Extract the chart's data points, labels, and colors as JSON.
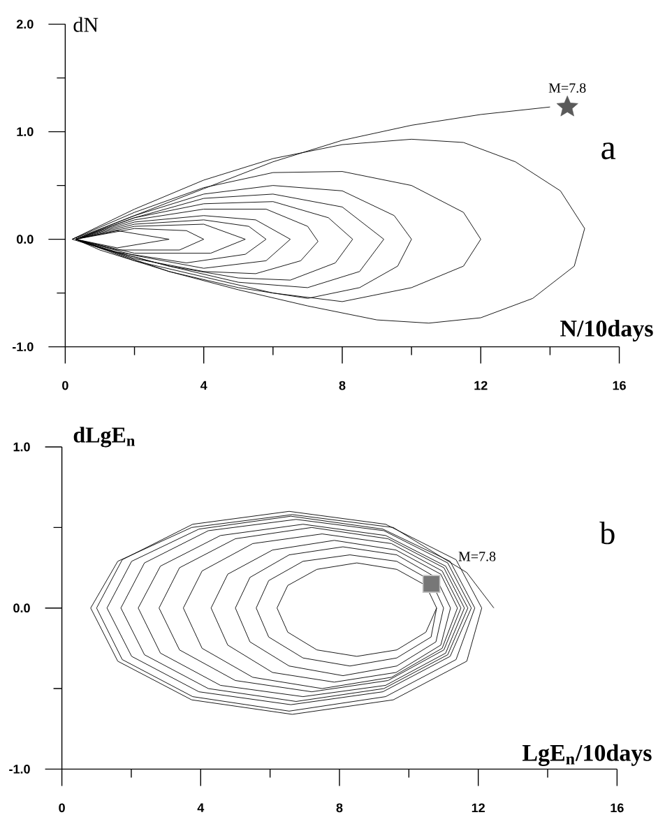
{
  "chart_data": [
    {
      "type": "line",
      "xlabel": "N/10days",
      "ylabel": "dN",
      "xlim": [
        0,
        16
      ],
      "ylim": [
        -1,
        2
      ],
      "xticks": [
        0,
        {
          "value": 2,
          "label": null
        },
        4,
        {
          "value": 6,
          "label": null
        },
        8,
        {
          "value": 10,
          "label": null
        },
        12,
        {
          "value": 14,
          "label": null
        },
        16
      ],
      "yticks": [
        {
          "value": -1,
          "label": "-1.0"
        },
        {
          "value": -0.5,
          "label": null
        },
        {
          "value": 0,
          "label": "0.0"
        },
        {
          "value": 0.5,
          "label": null
        },
        {
          "value": 1,
          "label": "1.0"
        },
        {
          "value": 1.5,
          "label": null
        },
        {
          "value": 2,
          "label": "2.0"
        }
      ],
      "annotations": [
        "a",
        {
          "text": "M=7.8",
          "x": 14.5,
          "y": 1.23
        }
      ],
      "series": [
        {
          "color": "#000000",
          "x": [
            14,
            12,
            10,
            8,
            6,
            4,
            2,
            0.8,
            0.2,
            2,
            4,
            6,
            8,
            10,
            11.5,
            13,
            14.3,
            15,
            14.7,
            13.5,
            12,
            10.5,
            9,
            7,
            5,
            3,
            1.2,
            0.2,
            2,
            4,
            6,
            8,
            10,
            11.5,
            12,
            11.5,
            10,
            8,
            6,
            4,
            2,
            0.3,
            2,
            4,
            6,
            8,
            9.5,
            10,
            9.6,
            8.5,
            7,
            5,
            3,
            1,
            0.3,
            2,
            4,
            6,
            8,
            9.2,
            8.5,
            7,
            5,
            3,
            1,
            0.3,
            2,
            4,
            6,
            7.6,
            8.3,
            7.8,
            6.5,
            5,
            3,
            1,
            0.3,
            2,
            4,
            5.8,
            7,
            7.3,
            6.8,
            5.5,
            4,
            2,
            0.3,
            2,
            4,
            5.5,
            6.5,
            5.8,
            4,
            2,
            0.3,
            2,
            4,
            5.3,
            5.8,
            5.2,
            3.5,
            1.5,
            0.3,
            2,
            4,
            5.2,
            4.2,
            2,
            0.3,
            2,
            3.5,
            4,
            3.3,
            1.5,
            0.3,
            1.5,
            3,
            1.5,
            0.3
          ],
          "values": [
            1.23,
            1.16,
            1.06,
            0.92,
            0.72,
            0.47,
            0.22,
            0.07,
            0,
            0.28,
            0.55,
            0.75,
            0.88,
            0.93,
            0.9,
            0.72,
            0.45,
            0.1,
            -0.25,
            -0.55,
            -0.73,
            -0.78,
            -0.75,
            -0.62,
            -0.47,
            -0.3,
            -0.1,
            0,
            0.25,
            0.48,
            0.62,
            0.63,
            0.5,
            0.25,
            0,
            -0.25,
            -0.45,
            -0.58,
            -0.5,
            -0.35,
            -0.2,
            0,
            0.22,
            0.42,
            0.5,
            0.45,
            0.22,
            0,
            -0.25,
            -0.45,
            -0.55,
            -0.45,
            -0.3,
            -0.1,
            0,
            0.2,
            0.38,
            0.42,
            0.3,
            0,
            -0.3,
            -0.45,
            -0.4,
            -0.25,
            -0.08,
            0,
            0.2,
            0.33,
            0.35,
            0.2,
            0,
            -0.22,
            -0.38,
            -0.36,
            -0.25,
            -0.08,
            0,
            0.18,
            0.28,
            0.28,
            0.12,
            -0.02,
            -0.2,
            -0.32,
            -0.3,
            -0.18,
            0,
            0.16,
            0.22,
            0.18,
            0,
            -0.2,
            -0.27,
            -0.15,
            0,
            0.14,
            0.18,
            0.12,
            0,
            -0.14,
            -0.22,
            -0.12,
            0,
            0.12,
            0.14,
            0,
            -0.13,
            -0.13,
            0,
            0.1,
            0.08,
            0,
            -0.1,
            -0.1,
            0,
            0.08,
            0,
            -0.08,
            0
          ]
        },
        {
          "type": "scatter",
          "marker": "star",
          "color": "#5a5a5a",
          "x": [
            14.5
          ],
          "values": [
            1.23
          ]
        }
      ]
    },
    {
      "type": "line",
      "xlabel": "LgE$_{n}$/10days",
      "ylabel": "dLgE$_{n}$",
      "xlim": [
        0,
        16
      ],
      "ylim": [
        -1,
        1
      ],
      "xticks": [
        0,
        {
          "value": 2,
          "label": null
        },
        4,
        {
          "value": 6,
          "label": null
        },
        8,
        {
          "value": 10,
          "label": null
        },
        12,
        {
          "value": 14,
          "label": null
        },
        16
      ],
      "yticks": [
        {
          "value": -1,
          "label": "-1.0"
        },
        {
          "value": -0.5,
          "label": null
        },
        {
          "value": 0,
          "label": "0.0"
        },
        {
          "value": 0.5,
          "label": null
        },
        {
          "value": 1,
          "label": "1.0"
        }
      ],
      "annotations": [
        "b",
        {
          "text": "M=7.8",
          "x": 10.65,
          "y": 0.15
        }
      ],
      "series": [
        {
          "color": "#000000",
          "x": [
            12.45,
            11.67,
            9.55,
            6.64,
            3.74,
            1.61,
            0.83,
            1.61,
            3.74,
            6.64,
            9.55,
            11.67,
            12.1,
            11.36,
            9.33,
            6.55,
            3.77,
            1.74,
            1.0,
            1.74,
            3.77,
            6.55,
            9.33,
            11.36,
            11.9,
            11.19,
            9.25,
            6.6,
            3.95,
            2.01,
            1.3,
            2.01,
            3.95,
            6.6,
            9.25,
            11.19,
            11.8,
            11.12,
            9.28,
            6.75,
            4.22,
            2.38,
            1.7,
            2.38,
            4.22,
            6.75,
            9.28,
            11.12,
            11.7,
            11.06,
            9.33,
            6.95,
            4.57,
            2.84,
            2.2,
            2.84,
            4.57,
            6.95,
            9.33,
            11.06,
            11.6,
            11.01,
            9.4,
            7.2,
            5.0,
            3.39,
            2.8,
            3.39,
            5.0,
            7.2,
            9.4,
            11.01,
            11.5,
            10.96,
            9.5,
            7.5,
            5.5,
            4.04,
            3.5,
            4.04,
            5.5,
            7.5,
            9.5,
            10.96,
            11.4,
            10.92,
            9.63,
            7.85,
            6.07,
            4.78,
            4.3,
            4.78,
            6.07,
            7.85,
            9.63,
            10.92,
            11.2,
            10.78,
            9.65,
            8.1,
            6.55,
            5.42,
            5.0,
            5.42,
            6.55,
            8.1,
            9.65,
            10.78,
            11.0,
            10.64,
            9.65,
            8.3,
            6.95,
            5.96,
            5.6,
            5.96,
            6.95,
            8.3,
            9.65,
            10.64,
            10.8,
            10.49,
            9.65,
            8.5,
            7.35,
            6.51,
            6.2,
            6.51,
            7.35,
            8.5,
            9.65,
            10.49,
            10.8
          ],
          "values": [
            0,
            0.22,
            0.5,
            0.58,
            0.5,
            0.29,
            0,
            -0.33,
            -0.57,
            -0.66,
            -0.57,
            -0.33,
            0,
            0.3,
            0.52,
            0.6,
            0.52,
            0.3,
            0,
            -0.32,
            -0.55,
            -0.64,
            -0.55,
            -0.32,
            0,
            0.29,
            0.49,
            0.57,
            0.49,
            0.29,
            0,
            -0.3,
            -0.52,
            -0.6,
            -0.52,
            -0.3,
            0,
            0.28,
            0.48,
            0.55,
            0.48,
            0.28,
            0,
            -0.29,
            -0.5,
            -0.58,
            -0.5,
            -0.29,
            0,
            0.26,
            0.45,
            0.52,
            0.45,
            0.26,
            0,
            -0.28,
            -0.48,
            -0.55,
            -0.48,
            -0.28,
            0,
            0.25,
            0.43,
            0.5,
            0.43,
            0.25,
            0,
            -0.26,
            -0.45,
            -0.52,
            -0.45,
            -0.26,
            0,
            0.23,
            0.4,
            0.46,
            0.4,
            0.23,
            0,
            -0.25,
            -0.43,
            -0.5,
            -0.43,
            -0.25,
            0,
            0.21,
            0.36,
            0.42,
            0.36,
            0.21,
            0,
            -0.23,
            -0.4,
            -0.46,
            -0.4,
            -0.23,
            0,
            0.19,
            0.33,
            0.38,
            0.33,
            0.19,
            0,
            -0.21,
            -0.36,
            -0.42,
            -0.36,
            -0.21,
            0,
            0.17,
            0.29,
            0.33,
            0.29,
            0.17,
            0,
            -0.18,
            -0.31,
            -0.36,
            -0.31,
            -0.18,
            0,
            0.14,
            0.24,
            0.28,
            0.24,
            0.14,
            0,
            -0.15,
            -0.26,
            -0.3,
            -0.26,
            -0.15,
            0
          ]
        },
        {
          "type": "scatter",
          "marker": "square",
          "color": "#777777",
          "x": [
            10.65
          ],
          "values": [
            0.15
          ]
        }
      ]
    }
  ]
}
